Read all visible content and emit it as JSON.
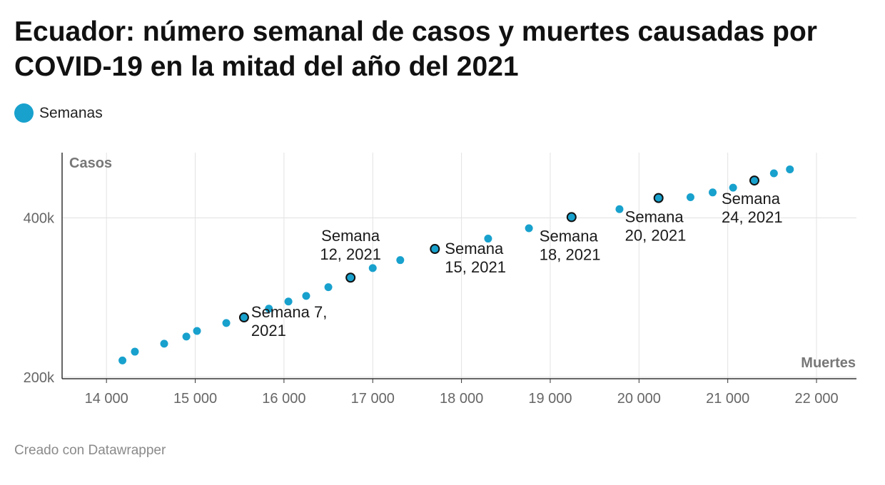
{
  "title": "Ecuador: número semanal de casos y muertes causadas por COVID-19 en la mitad del año del 2021",
  "legend": {
    "label": "Semanas",
    "color": "#18a1cd"
  },
  "footer": "Creado con Datawrapper",
  "chart_data": {
    "type": "scatter",
    "xlabel": "Muertes",
    "ylabel": "Casos",
    "xlim": [
      13500,
      22450
    ],
    "ylim": [
      198000,
      482000
    ],
    "x_ticks": [
      14000,
      15000,
      16000,
      17000,
      18000,
      19000,
      20000,
      21000,
      22000
    ],
    "x_tick_labels": [
      "14 000",
      "15 000",
      "16 000",
      "17 000",
      "18 000",
      "19 000",
      "20 000",
      "21 000",
      "22 000"
    ],
    "y_ticks": [
      200000,
      400000
    ],
    "y_tick_labels": [
      "200k",
      "400k"
    ],
    "grid": true,
    "series": [
      {
        "name": "Semanas",
        "color": "#18a1cd",
        "points": [
          {
            "x": 14180,
            "y": 221000
          },
          {
            "x": 14320,
            "y": 232000
          },
          {
            "x": 14650,
            "y": 242000
          },
          {
            "x": 14900,
            "y": 251000
          },
          {
            "x": 15020,
            "y": 258000
          },
          {
            "x": 15350,
            "y": 268000
          },
          {
            "x": 15550,
            "y": 275000,
            "label": [
              "Semana 7,",
              "2021"
            ]
          },
          {
            "x": 15830,
            "y": 286000
          },
          {
            "x": 16050,
            "y": 295000
          },
          {
            "x": 16250,
            "y": 302000
          },
          {
            "x": 16500,
            "y": 313000
          },
          {
            "x": 16750,
            "y": 325000,
            "label": [
              "Semana",
              "12, 2021"
            ]
          },
          {
            "x": 17000,
            "y": 337000
          },
          {
            "x": 17310,
            "y": 347000
          },
          {
            "x": 17700,
            "y": 361000,
            "label": [
              "Semana",
              "15, 2021"
            ]
          },
          {
            "x": 18300,
            "y": 374000
          },
          {
            "x": 18760,
            "y": 387000
          },
          {
            "x": 19240,
            "y": 401000,
            "label": [
              "Semana",
              "18, 2021"
            ]
          },
          {
            "x": 19780,
            "y": 411000
          },
          {
            "x": 20220,
            "y": 425000,
            "label": [
              "Semana",
              "20, 2021"
            ]
          },
          {
            "x": 20580,
            "y": 426000
          },
          {
            "x": 20830,
            "y": 432000
          },
          {
            "x": 21060,
            "y": 438000
          },
          {
            "x": 21300,
            "y": 447000,
            "label": [
              "Semana",
              "24, 2021"
            ]
          },
          {
            "x": 21520,
            "y": 456000
          },
          {
            "x": 21700,
            "y": 461000
          }
        ]
      }
    ]
  }
}
